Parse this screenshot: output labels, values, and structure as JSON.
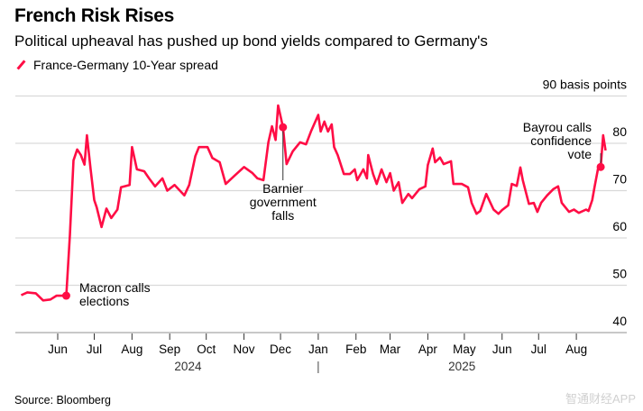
{
  "title": "French Risk Rises",
  "subtitle": "Political upheaval has pushed up bond yields compared to Germany's",
  "source": "Source: Bloomberg",
  "watermark": "智通财经APP",
  "colors": {
    "series": "#ff0d45",
    "grid": "#d9d9d9",
    "text": "#000000"
  },
  "chart_data": {
    "type": "line",
    "title": "French Risk Rises",
    "subtitle": "Political upheaval has pushed up bond yields compared to Germany's",
    "legend": "top-left",
    "grid": true,
    "ylabel": "90 basis points",
    "ylim": [
      40,
      90
    ],
    "yticks": [
      "90 basis points",
      "80",
      "70",
      "60",
      "50",
      "40"
    ],
    "ytick_values": [
      90,
      80,
      70,
      60,
      50,
      40
    ],
    "xticks": [
      "Jun",
      "Jul",
      "Aug",
      "Sep",
      "Oct",
      "Nov",
      "Dec",
      "Jan",
      "Feb",
      "Mar",
      "Apr",
      "May",
      "Jun",
      "Jul",
      "Aug"
    ],
    "xtick_dates": [
      "2024-06-01",
      "2024-07-01",
      "2024-08-01",
      "2024-09-01",
      "2024-10-01",
      "2024-11-01",
      "2024-12-01",
      "2025-01-01",
      "2025-02-01",
      "2025-03-01",
      "2025-04-01",
      "2025-05-01",
      "2025-06-01",
      "2025-07-01",
      "2025-08-01"
    ],
    "year_labels": [
      {
        "label": "2024",
        "date": "2024-09-16"
      },
      {
        "label": "2025",
        "date": "2025-04-29"
      }
    ],
    "year_separator": {
      "label": "|",
      "date": "2025-01-01"
    },
    "series": [
      {
        "name": "France-Germany 10-Year spread",
        "points": [
          [
            "2024-05-02",
            47.9
          ],
          [
            "2024-05-07",
            48.5
          ],
          [
            "2024-05-14",
            48.3
          ],
          [
            "2024-05-20",
            46.8
          ],
          [
            "2024-05-26",
            47.0
          ],
          [
            "2024-05-31",
            47.8
          ],
          [
            "2024-06-08",
            47.8
          ],
          [
            "2024-06-11",
            60.6
          ],
          [
            "2024-06-14",
            76.4
          ],
          [
            "2024-06-17",
            78.7
          ],
          [
            "2024-06-20",
            77.5
          ],
          [
            "2024-06-23",
            75.5
          ],
          [
            "2024-06-25",
            81.7
          ],
          [
            "2024-06-28",
            74.5
          ],
          [
            "2024-07-01",
            68.0
          ],
          [
            "2024-07-03",
            66.5
          ],
          [
            "2024-07-07",
            62.3
          ],
          [
            "2024-07-11",
            66.2
          ],
          [
            "2024-07-15",
            64.2
          ],
          [
            "2024-07-20",
            66.0
          ],
          [
            "2024-07-23",
            70.7
          ],
          [
            "2024-07-30",
            71.2
          ],
          [
            "2024-08-01",
            79.2
          ],
          [
            "2024-08-05",
            74.5
          ],
          [
            "2024-08-11",
            74.1
          ],
          [
            "2024-08-15",
            72.6
          ],
          [
            "2024-08-20",
            70.9
          ],
          [
            "2024-08-26",
            72.6
          ],
          [
            "2024-08-30",
            70.0
          ],
          [
            "2024-09-05",
            71.2
          ],
          [
            "2024-09-13",
            69.0
          ],
          [
            "2024-09-17",
            71.2
          ],
          [
            "2024-09-22",
            77.3
          ],
          [
            "2024-09-25",
            79.2
          ],
          [
            "2024-10-02",
            79.2
          ],
          [
            "2024-10-06",
            76.9
          ],
          [
            "2024-10-12",
            76.0
          ],
          [
            "2024-10-17",
            71.4
          ],
          [
            "2024-10-24",
            73.1
          ],
          [
            "2024-11-01",
            75.0
          ],
          [
            "2024-11-08",
            73.7
          ],
          [
            "2024-11-12",
            72.6
          ],
          [
            "2024-11-17",
            72.2
          ],
          [
            "2024-11-21",
            80.2
          ],
          [
            "2024-11-24",
            83.6
          ],
          [
            "2024-11-27",
            80.7
          ],
          [
            "2024-11-29",
            88.0
          ],
          [
            "2024-12-03",
            83.4
          ],
          [
            "2024-12-06",
            75.6
          ],
          [
            "2024-12-11",
            78.3
          ],
          [
            "2024-12-17",
            80.2
          ],
          [
            "2024-12-22",
            79.8
          ],
          [
            "2024-12-26",
            82.5
          ],
          [
            "2025-01-01",
            86.0
          ],
          [
            "2025-01-03",
            82.5
          ],
          [
            "2025-01-06",
            84.6
          ],
          [
            "2025-01-09",
            82.5
          ],
          [
            "2025-01-12",
            84.0
          ],
          [
            "2025-01-14",
            79.2
          ],
          [
            "2025-01-17",
            77.5
          ],
          [
            "2025-01-22",
            73.5
          ],
          [
            "2025-01-27",
            73.5
          ],
          [
            "2025-01-31",
            74.5
          ],
          [
            "2025-02-02",
            72.2
          ],
          [
            "2025-02-07",
            74.5
          ],
          [
            "2025-02-10",
            72.6
          ],
          [
            "2025-02-11",
            77.5
          ],
          [
            "2025-02-15",
            73.5
          ],
          [
            "2025-02-18",
            71.4
          ],
          [
            "2025-02-22",
            74.5
          ],
          [
            "2025-02-26",
            71.8
          ],
          [
            "2025-03-01",
            73.7
          ],
          [
            "2025-03-04",
            70.0
          ],
          [
            "2025-03-08",
            71.8
          ],
          [
            "2025-03-11",
            67.4
          ],
          [
            "2025-03-16",
            69.3
          ],
          [
            "2025-03-19",
            68.4
          ],
          [
            "2025-03-25",
            70.3
          ],
          [
            "2025-03-30",
            70.9
          ],
          [
            "2025-04-01",
            75.4
          ],
          [
            "2025-04-05",
            78.9
          ],
          [
            "2025-04-07",
            76.0
          ],
          [
            "2025-04-11",
            77.0
          ],
          [
            "2025-04-14",
            75.6
          ],
          [
            "2025-04-20",
            76.2
          ],
          [
            "2025-04-22",
            71.4
          ],
          [
            "2025-04-29",
            71.4
          ],
          [
            "2025-05-04",
            70.7
          ],
          [
            "2025-05-07",
            67.4
          ],
          [
            "2025-05-11",
            65.1
          ],
          [
            "2025-05-14",
            65.7
          ],
          [
            "2025-05-19",
            69.3
          ],
          [
            "2025-05-25",
            66.0
          ],
          [
            "2025-05-29",
            65.1
          ],
          [
            "2025-06-01",
            65.9
          ],
          [
            "2025-06-06",
            66.9
          ],
          [
            "2025-06-09",
            71.4
          ],
          [
            "2025-06-13",
            71.0
          ],
          [
            "2025-06-16",
            74.9
          ],
          [
            "2025-06-18",
            72.2
          ],
          [
            "2025-06-23",
            67.2
          ],
          [
            "2025-06-27",
            67.4
          ],
          [
            "2025-06-30",
            65.5
          ],
          [
            "2025-07-03",
            67.4
          ],
          [
            "2025-07-08",
            69.0
          ],
          [
            "2025-07-13",
            70.3
          ],
          [
            "2025-07-17",
            70.9
          ],
          [
            "2025-07-20",
            67.4
          ],
          [
            "2025-07-26",
            65.5
          ],
          [
            "2025-07-30",
            66.0
          ],
          [
            "2025-08-03",
            65.3
          ],
          [
            "2025-08-09",
            66.0
          ],
          [
            "2025-08-11",
            65.7
          ],
          [
            "2025-08-14",
            68.0
          ],
          [
            "2025-08-16",
            70.9
          ],
          [
            "2025-08-19",
            74.9
          ],
          [
            "2025-08-21",
            75.0
          ],
          [
            "2025-08-23",
            81.7
          ],
          [
            "2025-08-25",
            78.5
          ]
        ]
      }
    ],
    "annotations": [
      {
        "label": "Macron calls elections",
        "lines": [
          "Macron calls",
          "elections"
        ],
        "date": "2024-06-08",
        "value": 47.8
      },
      {
        "label": "Barnier government falls",
        "lines": [
          "Barnier",
          "government",
          "falls"
        ],
        "date": "2024-12-03",
        "value": 83.4
      },
      {
        "label": "Bayrou calls confidence vote",
        "lines": [
          "Bayrou calls",
          "confidence",
          "vote"
        ],
        "date": "2025-08-21",
        "value": 75.0
      }
    ]
  }
}
